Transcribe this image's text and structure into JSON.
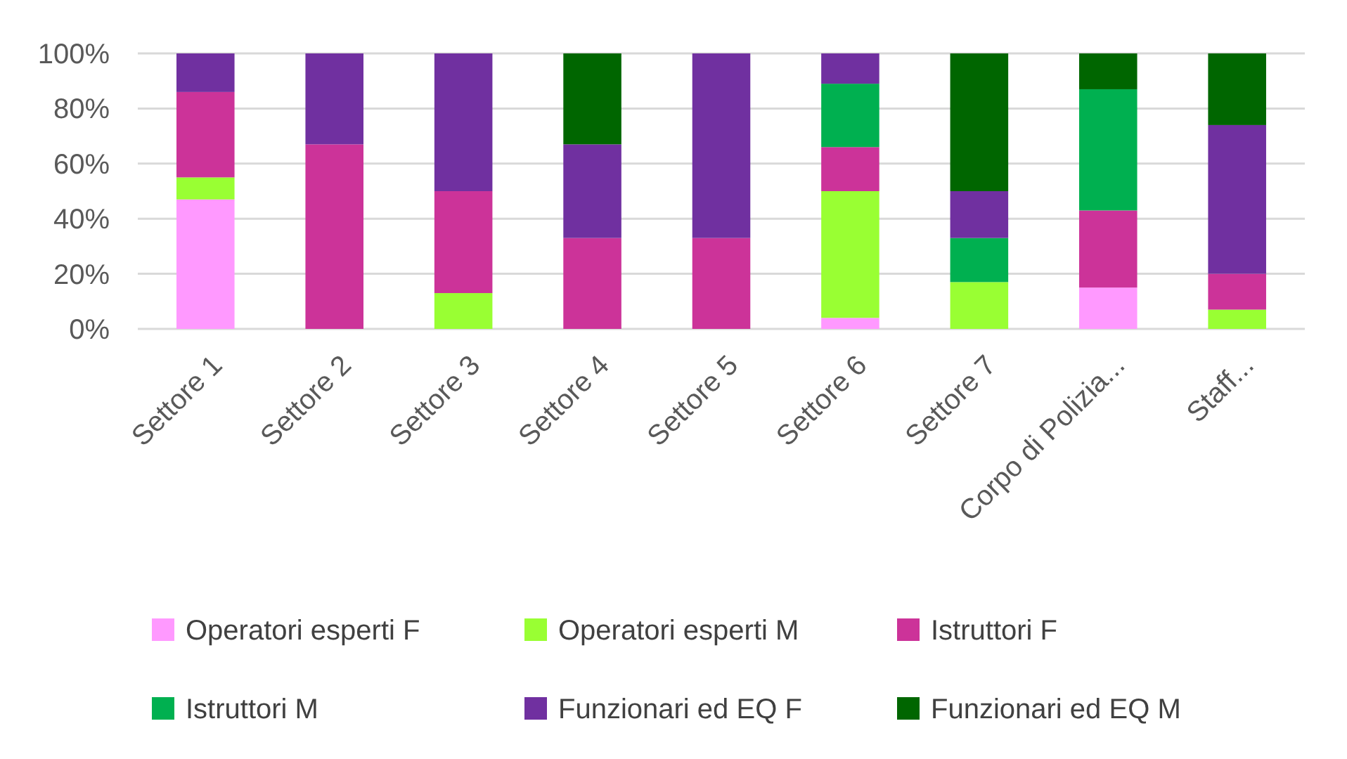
{
  "chart_data": {
    "type": "bar",
    "stacked": true,
    "categories": [
      "Settore 1",
      "Settore 2",
      "Settore 3",
      "Settore 4",
      "Settore 5",
      "Settore 6",
      "Settore 7",
      "Corpo di Polizia...",
      "Staff..."
    ],
    "series": [
      {
        "name": "Operatori esperti F",
        "color": "#ff99ff",
        "values": [
          47,
          0,
          0,
          0,
          0,
          4,
          0,
          15,
          0
        ]
      },
      {
        "name": "Operatori esperti M",
        "color": "#99ff33",
        "values": [
          8,
          0,
          13,
          0,
          0,
          46,
          17,
          0,
          7
        ]
      },
      {
        "name": "Istruttori F",
        "color": "#cc3399",
        "values": [
          31,
          67,
          37,
          33,
          33,
          16,
          0,
          28,
          13
        ]
      },
      {
        "name": "Istruttori M",
        "color": "#00b050",
        "values": [
          0,
          0,
          0,
          0,
          0,
          23,
          16,
          44,
          0
        ]
      },
      {
        "name": "Funzionari ed EQ F",
        "color": "#7030a0",
        "values": [
          14,
          33,
          50,
          34,
          67,
          11,
          17,
          0,
          54
        ]
      },
      {
        "name": "Funzionari ed EQ M",
        "color": "#006600",
        "values": [
          0,
          0,
          0,
          33,
          0,
          0,
          50,
          13,
          26
        ]
      }
    ],
    "ylim": [
      0,
      100
    ],
    "yticks": [
      {
        "value": 0,
        "label": "0%"
      },
      {
        "value": 20,
        "label": "20%"
      },
      {
        "value": 40,
        "label": "40%"
      },
      {
        "value": 60,
        "label": "60%"
      },
      {
        "value": 80,
        "label": "80%"
      },
      {
        "value": 100,
        "label": "100%"
      }
    ],
    "grid": "y",
    "legend": "bottom"
  }
}
